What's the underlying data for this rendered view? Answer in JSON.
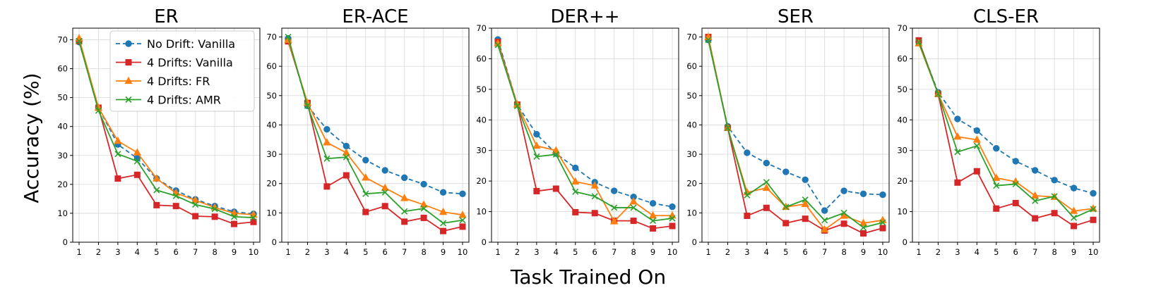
{
  "figure": {
    "ylabel": "Accuracy (%)",
    "xlabel": "Task Trained On"
  },
  "legend": {
    "placement": "upper-right",
    "entries": [
      {
        "name": "No Drift: Vanilla",
        "color": "#1f77b4",
        "marker": "circle",
        "dash": "dashed"
      },
      {
        "name": "4 Drifts: Vanilla",
        "color": "#d62728",
        "marker": "square",
        "dash": "solid"
      },
      {
        "name": "4 Drifts: FR",
        "color": "#ff7f0e",
        "marker": "triangle",
        "dash": "solid"
      },
      {
        "name": "4 Drifts: AMR",
        "color": "#2ca02c",
        "marker": "x",
        "dash": "solid"
      }
    ]
  },
  "chart_data": [
    {
      "type": "line",
      "title": "ER",
      "x": [
        1,
        2,
        3,
        4,
        5,
        6,
        7,
        8,
        9,
        10
      ],
      "ylim": [
        0,
        74
      ],
      "yticks": [
        0,
        10,
        20,
        30,
        40,
        50,
        60,
        70
      ],
      "grid": true,
      "has_legend": true,
      "series": [
        {
          "name": "No Drift: Vanilla",
          "values": [
            69.2,
            46.5,
            33.8,
            29.0,
            22.0,
            17.8,
            14.8,
            12.5,
            10.5,
            9.8
          ]
        },
        {
          "name": "4 Drifts: Vanilla",
          "values": [
            69.5,
            46.5,
            22.0,
            23.3,
            12.8,
            12.5,
            9.0,
            8.8,
            6.3,
            7.0
          ]
        },
        {
          "name": "4 Drifts: FR",
          "values": [
            70.5,
            46.5,
            35.0,
            31.0,
            22.0,
            17.0,
            14.5,
            12.0,
            10.0,
            9.5
          ]
        },
        {
          "name": "4 Drifts: AMR",
          "values": [
            69.5,
            45.5,
            30.5,
            28.0,
            18.0,
            16.0,
            13.0,
            11.5,
            8.8,
            8.5
          ]
        }
      ]
    },
    {
      "type": "line",
      "title": "ER-ACE",
      "x": [
        1,
        2,
        3,
        4,
        5,
        6,
        7,
        8,
        9,
        10
      ],
      "ylim": [
        0,
        73
      ],
      "yticks": [
        0,
        10,
        20,
        30,
        40,
        50,
        60,
        70
      ],
      "grid": true,
      "has_legend": false,
      "series": [
        {
          "name": "No Drift: Vanilla",
          "values": [
            69.5,
            46.5,
            38.5,
            32.8,
            28.0,
            24.5,
            22.0,
            19.8,
            17.0,
            16.5
          ]
        },
        {
          "name": "4 Drifts: Vanilla",
          "values": [
            68.5,
            47.5,
            19.0,
            22.8,
            10.3,
            12.3,
            7.0,
            8.3,
            3.8,
            5.3
          ]
        },
        {
          "name": "4 Drifts: FR",
          "values": [
            69.0,
            47.5,
            34.0,
            30.5,
            22.0,
            18.5,
            15.0,
            12.8,
            10.3,
            9.3
          ]
        },
        {
          "name": "4 Drifts: AMR",
          "values": [
            70.0,
            46.5,
            28.5,
            29.0,
            16.5,
            17.0,
            10.5,
            11.5,
            6.5,
            7.5
          ]
        }
      ]
    },
    {
      "type": "line",
      "title": "DER++",
      "x": [
        1,
        2,
        3,
        4,
        5,
        6,
        7,
        8,
        9,
        10
      ],
      "ylim": [
        0,
        70
      ],
      "yticks": [
        0,
        10,
        20,
        30,
        40,
        50,
        60,
        70
      ],
      "grid": true,
      "has_legend": false,
      "series": [
        {
          "name": "No Drift: Vanilla",
          "values": [
            66.3,
            45.0,
            35.3,
            29.0,
            24.3,
            19.6,
            16.8,
            14.8,
            12.7,
            11.6
          ]
        },
        {
          "name": "4 Drifts: Vanilla",
          "values": [
            65.5,
            45.0,
            16.7,
            17.5,
            9.8,
            9.5,
            7.0,
            7.0,
            4.5,
            5.3
          ]
        },
        {
          "name": "4 Drifts: FR",
          "values": [
            65.0,
            45.0,
            31.5,
            30.0,
            19.8,
            18.5,
            6.8,
            13.3,
            8.7,
            8.7
          ]
        },
        {
          "name": "4 Drifts: AMR",
          "values": [
            64.5,
            44.5,
            28.0,
            28.7,
            16.5,
            15.0,
            11.3,
            11.3,
            7.0,
            7.8
          ]
        }
      ]
    },
    {
      "type": "line",
      "title": "SER",
      "x": [
        1,
        2,
        3,
        4,
        5,
        6,
        7,
        8,
        9,
        10
      ],
      "ylim": [
        0,
        73
      ],
      "yticks": [
        0,
        10,
        20,
        30,
        40,
        50,
        60,
        70
      ],
      "grid": true,
      "has_legend": false,
      "series": [
        {
          "name": "No Drift: Vanilla",
          "values": [
            69.0,
            39.5,
            30.5,
            27.0,
            24.0,
            21.3,
            10.8,
            17.5,
            16.5,
            16.2
          ]
        },
        {
          "name": "4 Drifts: Vanilla",
          "values": [
            70.0,
            39.0,
            9.0,
            11.7,
            6.5,
            8.0,
            4.0,
            6.3,
            3.0,
            4.8
          ]
        },
        {
          "name": "4 Drifts: FR",
          "values": [
            70.0,
            39.0,
            17.0,
            18.5,
            12.0,
            13.0,
            4.3,
            9.0,
            6.5,
            7.5
          ]
        },
        {
          "name": "4 Drifts: AMR",
          "values": [
            69.0,
            39.0,
            16.0,
            20.5,
            12.0,
            14.5,
            7.5,
            10.0,
            5.0,
            6.7
          ]
        }
      ]
    },
    {
      "type": "line",
      "title": "CLS-ER",
      "x": [
        1,
        2,
        3,
        4,
        5,
        6,
        7,
        8,
        9,
        10
      ],
      "ylim": [
        0,
        70
      ],
      "yticks": [
        0,
        10,
        20,
        30,
        40,
        50,
        60,
        70
      ],
      "grid": true,
      "has_legend": false,
      "series": [
        {
          "name": "No Drift: Vanilla",
          "values": [
            65.5,
            49.0,
            40.3,
            36.5,
            30.7,
            26.5,
            23.5,
            20.3,
            17.7,
            16.0
          ]
        },
        {
          "name": "4 Drifts: Vanilla",
          "values": [
            66.0,
            48.5,
            19.5,
            23.2,
            11.0,
            12.8,
            7.8,
            9.5,
            5.3,
            7.3
          ]
        },
        {
          "name": "4 Drifts: FR",
          "values": [
            65.0,
            48.5,
            34.5,
            33.5,
            21.0,
            19.8,
            15.2,
            14.8,
            10.2,
            11.0
          ]
        },
        {
          "name": "4 Drifts: AMR",
          "values": [
            65.5,
            48.5,
            29.5,
            31.5,
            18.5,
            19.0,
            13.5,
            15.0,
            8.0,
            10.8
          ]
        }
      ]
    }
  ]
}
